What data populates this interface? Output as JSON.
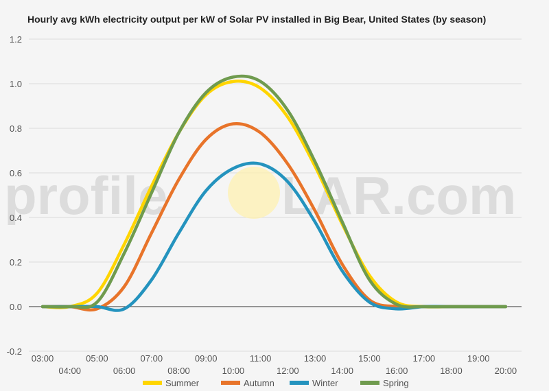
{
  "chart_data": {
    "type": "line",
    "title": "Hourly avg kWh electricity output per kW of Solar PV installed in Big Bear, United States (by season)",
    "xlabel": "",
    "ylabel": "",
    "x": [
      "03:00",
      "04:00",
      "05:00",
      "06:00",
      "07:00",
      "08:00",
      "09:00",
      "10:00",
      "11:00",
      "12:00",
      "13:00",
      "14:00",
      "15:00",
      "16:00",
      "17:00",
      "18:00",
      "19:00",
      "20:00"
    ],
    "ylim": [
      -0.2,
      1.2
    ],
    "yticks": [
      "-0.2",
      "0.0",
      "0.2",
      "0.4",
      "0.6",
      "0.8",
      "1.0",
      "1.2"
    ],
    "grid": true,
    "legend_position": "bottom",
    "series": [
      {
        "name": "Summer",
        "color": "#ffd500",
        "values": [
          0,
          0,
          0.06,
          0.28,
          0.54,
          0.78,
          0.95,
          1.01,
          0.98,
          0.85,
          0.63,
          0.37,
          0.14,
          0.02,
          0,
          0,
          0,
          0
        ]
      },
      {
        "name": "Autumn",
        "color": "#e8742a",
        "values": [
          0,
          0,
          -0.01,
          0.09,
          0.33,
          0.57,
          0.75,
          0.82,
          0.78,
          0.64,
          0.43,
          0.19,
          0.03,
          0,
          0,
          0,
          0,
          0
        ]
      },
      {
        "name": "Winter",
        "color": "#2493be",
        "values": [
          0,
          0,
          0,
          -0.01,
          0.12,
          0.33,
          0.52,
          0.62,
          0.64,
          0.56,
          0.38,
          0.16,
          0.02,
          -0.01,
          0,
          0,
          0,
          0
        ]
      },
      {
        "name": "Spring",
        "color": "#6f9b4e",
        "values": [
          0,
          0,
          0.02,
          0.24,
          0.51,
          0.78,
          0.96,
          1.03,
          1.01,
          0.88,
          0.65,
          0.38,
          0.12,
          0.01,
          0,
          0,
          0,
          0
        ]
      }
    ]
  },
  "watermark": {
    "text_before": "profile",
    "text_after": "LAR.com",
    "sun_color": "#fdf0b0"
  }
}
